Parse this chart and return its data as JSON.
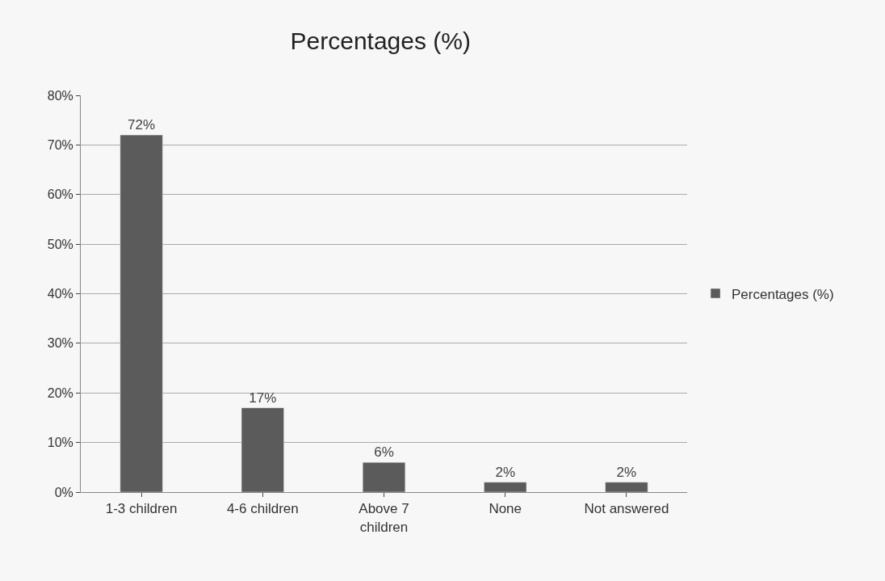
{
  "chart_data": {
    "type": "bar",
    "title": "Percentages (%)",
    "categories": [
      "1-3 children",
      "4-6 children",
      "Above 7 children",
      "None",
      "Not answered"
    ],
    "series": [
      {
        "name": "Percentages (%)",
        "color": "#5b5b5b",
        "values": [
          72,
          17,
          6,
          2,
          2
        ],
        "value_labels": [
          "72%",
          "17%",
          "6%",
          "2%",
          "2%"
        ]
      }
    ],
    "ylim": [
      0,
      80
    ],
    "yticks": [
      {
        "value": 0,
        "label": "0%"
      },
      {
        "value": 10,
        "label": "10%"
      },
      {
        "value": 20,
        "label": "20%"
      },
      {
        "value": 30,
        "label": "30%"
      },
      {
        "value": 40,
        "label": "40%"
      },
      {
        "value": 50,
        "label": "50%"
      },
      {
        "value": 60,
        "label": "60%"
      },
      {
        "value": 70,
        "label": "70%"
      },
      {
        "value": 80,
        "label": "80%"
      }
    ],
    "grid": "y",
    "legend": "right"
  }
}
